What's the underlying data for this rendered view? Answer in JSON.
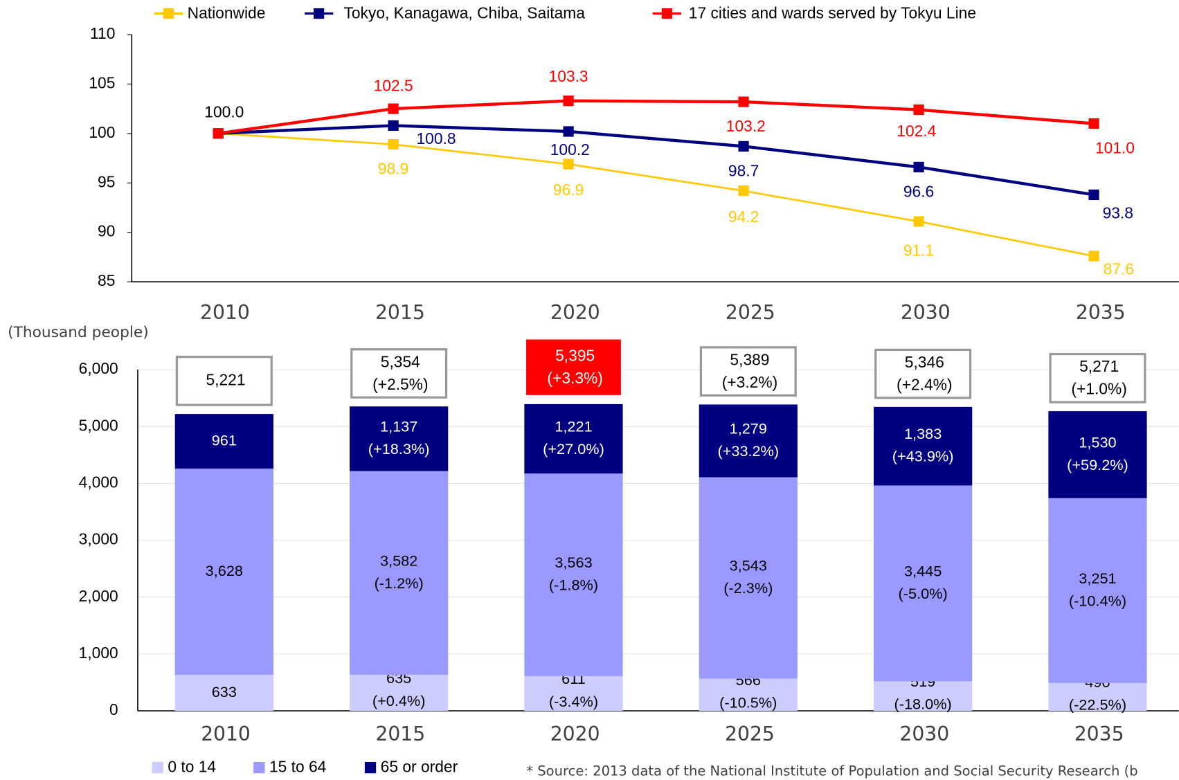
{
  "chart_data": [
    {
      "type": "line",
      "categories": [
        "2010",
        "2015",
        "2020",
        "2025",
        "2030",
        "2035"
      ],
      "series": [
        {
          "name": "Nationwide",
          "color": "#ffc800",
          "values": [
            100.0,
            98.9,
            96.9,
            94.2,
            91.1,
            87.6
          ],
          "value_labels": [
            null,
            "98.9",
            "96.9",
            "94.2",
            "91.1",
            "87.6"
          ]
        },
        {
          "name": "Tokyo, Kanagawa, Chiba, Saitama",
          "color": "#000080",
          "values": [
            100.0,
            100.8,
            100.2,
            98.7,
            96.6,
            93.8
          ],
          "value_labels": [
            null,
            "100.8",
            "100.2",
            "98.7",
            "96.6",
            "93.8"
          ]
        },
        {
          "name": "17 cities and wards served by Tokyu Line",
          "color": "#ff0000",
          "values": [
            100.0,
            102.5,
            103.3,
            103.2,
            102.4,
            101.0
          ],
          "value_labels": [
            "100.0",
            "102.5",
            "103.3",
            "103.2",
            "102.4",
            "101.0"
          ]
        }
      ],
      "ylim": [
        85,
        110
      ],
      "yticks": [
        85,
        90,
        95,
        100,
        105,
        110
      ],
      "legend": "top",
      "grid": false
    },
    {
      "type": "stacked_bar",
      "y_label": "(Thousand people)",
      "categories": [
        "2010",
        "2015",
        "2020",
        "2025",
        "2030",
        "2035"
      ],
      "series": [
        {
          "name": "0 to 14",
          "color": "#ccccff",
          "values": [
            633,
            635,
            611,
            566,
            519,
            490
          ],
          "change_labels": [
            null,
            "(+0.4%)",
            "(-3.4%)",
            "(-10.5%)",
            "(-18.0%)",
            "(-22.5%)"
          ]
        },
        {
          "name": "15 to 64",
          "color": "#9999ff",
          "values": [
            3628,
            3582,
            3563,
            3543,
            3445,
            3251
          ],
          "value_labels": [
            "3,628",
            "3,582",
            "3,563",
            "3,543",
            "3,445",
            "3,251"
          ],
          "change_labels": [
            null,
            "(-1.2%)",
            "(-1.8%)",
            "(-2.3%)",
            "(-5.0%)",
            "(-10.4%)"
          ]
        },
        {
          "name": "65 or order",
          "color": "#000080",
          "values": [
            961,
            1137,
            1221,
            1279,
            1383,
            1530
          ],
          "value_labels": [
            "961",
            "1,137",
            "1,221",
            "1,279",
            "1,383",
            "1,530"
          ],
          "change_labels": [
            null,
            "(+18.3%)",
            "(+27.0%)",
            "(+33.2%)",
            "(+43.9%)",
            "(+59.2%)"
          ]
        }
      ],
      "totals": [
        5221,
        5354,
        5395,
        5389,
        5346,
        5271
      ],
      "total_labels": [
        "5,221",
        "5,354",
        "5,395",
        "5,389",
        "5,346",
        "5,271"
      ],
      "total_change_labels": [
        null,
        "(+2.5%)",
        "(+3.3%)",
        "(+3.2%)",
        "(+2.4%)",
        "(+1.0%)"
      ],
      "highlight_color": "#ff0000",
      "highlight_index": 2,
      "ylim": [
        0,
        6000
      ],
      "yticks": [
        0,
        {
          "value": 1000,
          "label": "1,000"
        },
        {
          "value": 2000,
          "label": "2,000"
        },
        {
          "value": 3000,
          "label": "3,000"
        },
        {
          "value": 4000,
          "label": "4,000"
        },
        {
          "value": 5000,
          "label": "5,000"
        },
        {
          "value": 6000,
          "label": "6,000"
        }
      ],
      "grid": true,
      "legend": "bottom",
      "note": "* Source: 2013 data of the National Institute of Population and Social Security Research (b"
    }
  ]
}
